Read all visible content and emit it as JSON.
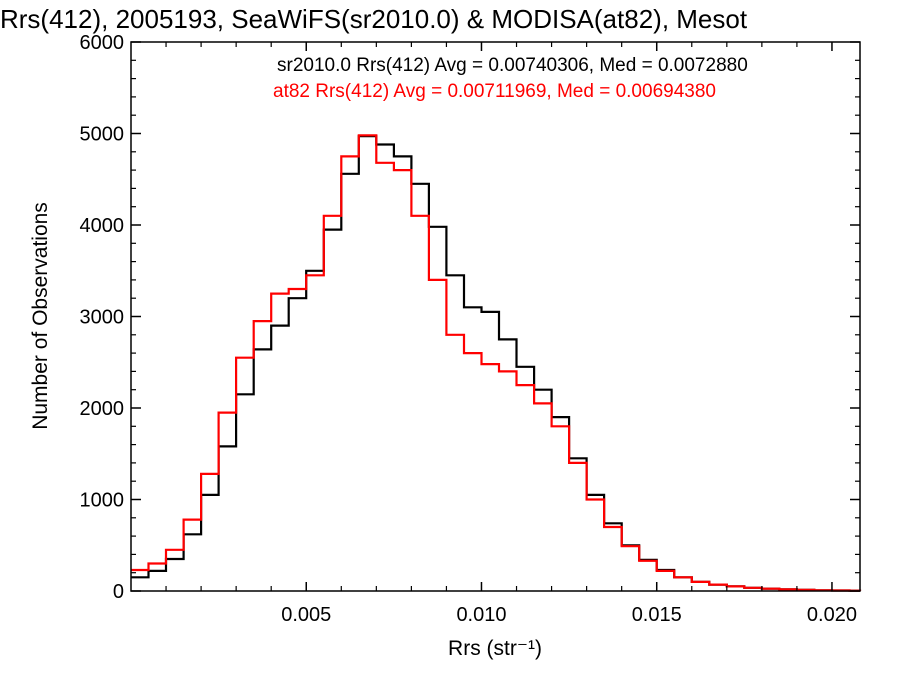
{
  "chart_data": {
    "type": "line",
    "title": "Rrs(412), 2005193, SeaWiFS(sr2010.0) & MODISA(at82), Mesot",
    "xlabel": "Rrs (str⁻¹)",
    "ylabel": "Number of Observations",
    "xlim": [
      0.0,
      0.0208
    ],
    "ylim": [
      0,
      6000
    ],
    "xticks": [
      0.005,
      0.01,
      0.015,
      0.02
    ],
    "xtick_labels": [
      "0.005",
      "0.010",
      "0.015",
      "0.020"
    ],
    "yticks": [
      0,
      1000,
      2000,
      3000,
      4000,
      5000,
      6000
    ],
    "ytick_labels": [
      "0",
      "1000",
      "2000",
      "3000",
      "4000",
      "5000",
      "6000"
    ],
    "grid": false,
    "step": true,
    "series": [
      {
        "name": "sr2010.0 Rrs(412) Avg = 0.00740306, Med = 0.0072880",
        "color": "#000000",
        "x": [
          0.0,
          0.0005,
          0.001,
          0.0015,
          0.002,
          0.0025,
          0.003,
          0.0035,
          0.004,
          0.0045,
          0.005,
          0.0055,
          0.006,
          0.0065,
          0.007,
          0.0075,
          0.008,
          0.0085,
          0.009,
          0.0095,
          0.01,
          0.0105,
          0.011,
          0.0115,
          0.012,
          0.0125,
          0.013,
          0.0135,
          0.014,
          0.0145,
          0.015,
          0.0155,
          0.016,
          0.0165,
          0.017,
          0.0175,
          0.018,
          0.0185,
          0.019,
          0.0195,
          0.02,
          0.0205,
          0.0208
        ],
        "y": [
          150,
          220,
          350,
          620,
          1050,
          1580,
          2150,
          2640,
          2900,
          3200,
          3500,
          3950,
          4560,
          4970,
          4880,
          4750,
          4450,
          3980,
          3450,
          3100,
          3050,
          2750,
          2450,
          2200,
          1900,
          1450,
          1050,
          740,
          500,
          340,
          230,
          150,
          100,
          70,
          50,
          35,
          25,
          18,
          12,
          8,
          5,
          3,
          2
        ]
      },
      {
        "name": "at82 Rrs(412) Avg = 0.00711969, Med = 0.00694380",
        "color": "#ff0000",
        "x": [
          0.0,
          0.0005,
          0.001,
          0.0015,
          0.002,
          0.0025,
          0.003,
          0.0035,
          0.004,
          0.0045,
          0.005,
          0.0055,
          0.006,
          0.0065,
          0.007,
          0.0075,
          0.008,
          0.0085,
          0.009,
          0.0095,
          0.01,
          0.0105,
          0.011,
          0.0115,
          0.012,
          0.0125,
          0.013,
          0.0135,
          0.014,
          0.0145,
          0.015,
          0.0155,
          0.016,
          0.0165,
          0.017,
          0.0175,
          0.018,
          0.0185,
          0.019,
          0.0195,
          0.02,
          0.0205,
          0.0208
        ],
        "y": [
          230,
          300,
          450,
          780,
          1280,
          1950,
          2550,
          2950,
          3250,
          3300,
          3450,
          4100,
          4750,
          4980,
          4680,
          4600,
          4100,
          3400,
          2800,
          2600,
          2480,
          2400,
          2250,
          2050,
          1800,
          1400,
          1000,
          700,
          490,
          330,
          220,
          150,
          100,
          70,
          50,
          35,
          25,
          18,
          12,
          8,
          5,
          3,
          2
        ]
      }
    ],
    "legend_position": "top-right"
  }
}
